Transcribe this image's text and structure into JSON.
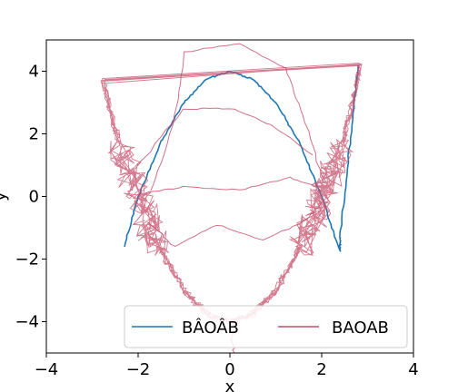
{
  "chart_data": {
    "type": "line",
    "xlabel": "x",
    "ylabel": "y",
    "xlim": [
      -4,
      4
    ],
    "ylim": [
      -5,
      5
    ],
    "xticks": [
      -4,
      -2,
      0,
      2,
      4
    ],
    "yticks": [
      -4,
      -2,
      0,
      2,
      4
    ],
    "xtick_labels": [
      "−4",
      "−2",
      "0",
      "2",
      "4"
    ],
    "ytick_labels": [
      "−4",
      "−2",
      "0",
      "2",
      "4"
    ],
    "grid": false,
    "legend_position": "lower-right",
    "series": [
      {
        "name": "BÂOÂB",
        "color": "#1f77b4",
        "points": [
          [
            -2.3,
            -1.6
          ],
          [
            -2.0,
            0.0
          ],
          [
            -1.5,
            1.75
          ],
          [
            -1.0,
            3.0
          ],
          [
            -0.5,
            3.75
          ],
          [
            0.0,
            4.0
          ],
          [
            0.5,
            3.75
          ],
          [
            1.0,
            3.0
          ],
          [
            1.5,
            1.75
          ],
          [
            2.0,
            0.0
          ],
          [
            2.4,
            -1.76
          ],
          [
            2.4,
            -1.3
          ],
          [
            2.6,
            1.5
          ],
          [
            2.8,
            4.2
          ]
        ]
      },
      {
        "name": "BAOAB",
        "color": "#c44e6a",
        "points": [
          [
            -2.75,
            3.7
          ],
          [
            -2.55,
            2.4
          ],
          [
            -2.3,
            1.2
          ],
          [
            -2.0,
            0.0
          ],
          [
            -1.7,
            -1.1
          ],
          [
            -1.4,
            -2.0
          ],
          [
            -1.0,
            -3.0
          ],
          [
            -0.5,
            -3.75
          ],
          [
            0.0,
            -4.0
          ],
          [
            0.5,
            -3.75
          ],
          [
            1.0,
            -3.0
          ],
          [
            1.4,
            -2.0
          ],
          [
            1.7,
            -1.1
          ],
          [
            2.0,
            0.0
          ],
          [
            2.25,
            0.9
          ],
          [
            2.5,
            2.0
          ],
          [
            2.7,
            3.2
          ],
          [
            2.85,
            4.2
          ]
        ]
      }
    ]
  }
}
